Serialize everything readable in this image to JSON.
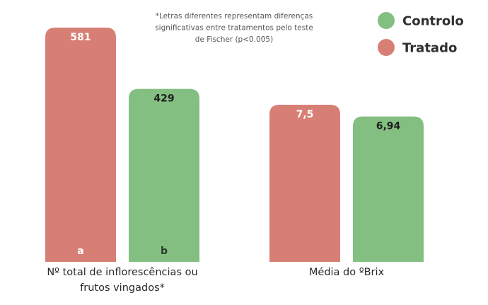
{
  "chart_data": {
    "type": "bar",
    "title": "",
    "note": [
      "*Letras diferentes representam diferenças",
      "significativas entre tratamentos pelo teste",
      "de Fischer (p<0.005)"
    ],
    "legend_position": "top-right",
    "legend": [
      {
        "name": "Controlo",
        "color": "#84bf82"
      },
      {
        "name": "Tratado",
        "color": "#d87f75"
      }
    ],
    "groups": [
      {
        "label_lines": [
          "Nº total de inflorescências ou",
          "frutos vingados*"
        ],
        "bars": [
          {
            "series": "Tratado",
            "value": 581,
            "label": "581",
            "letter": "a"
          },
          {
            "series": "Controlo",
            "value": 429,
            "label": "429",
            "letter": "b"
          }
        ]
      },
      {
        "label_lines": [
          "Média do ºBrix"
        ],
        "bars": [
          {
            "series": "Tratado",
            "value": 7.5,
            "label": "7,5",
            "letter": ""
          },
          {
            "series": "Controlo",
            "value": 6.94,
            "label": "6,94",
            "letter": ""
          }
        ]
      }
    ],
    "colors": {
      "Tratado": "#d87f75",
      "Controlo": "#84bf82",
      "value_on_red": "#ffffff",
      "value_on_green": "#1e1e1e",
      "letter_on_red": "#ffffff",
      "letter_on_green": "#2b3a2b"
    }
  }
}
